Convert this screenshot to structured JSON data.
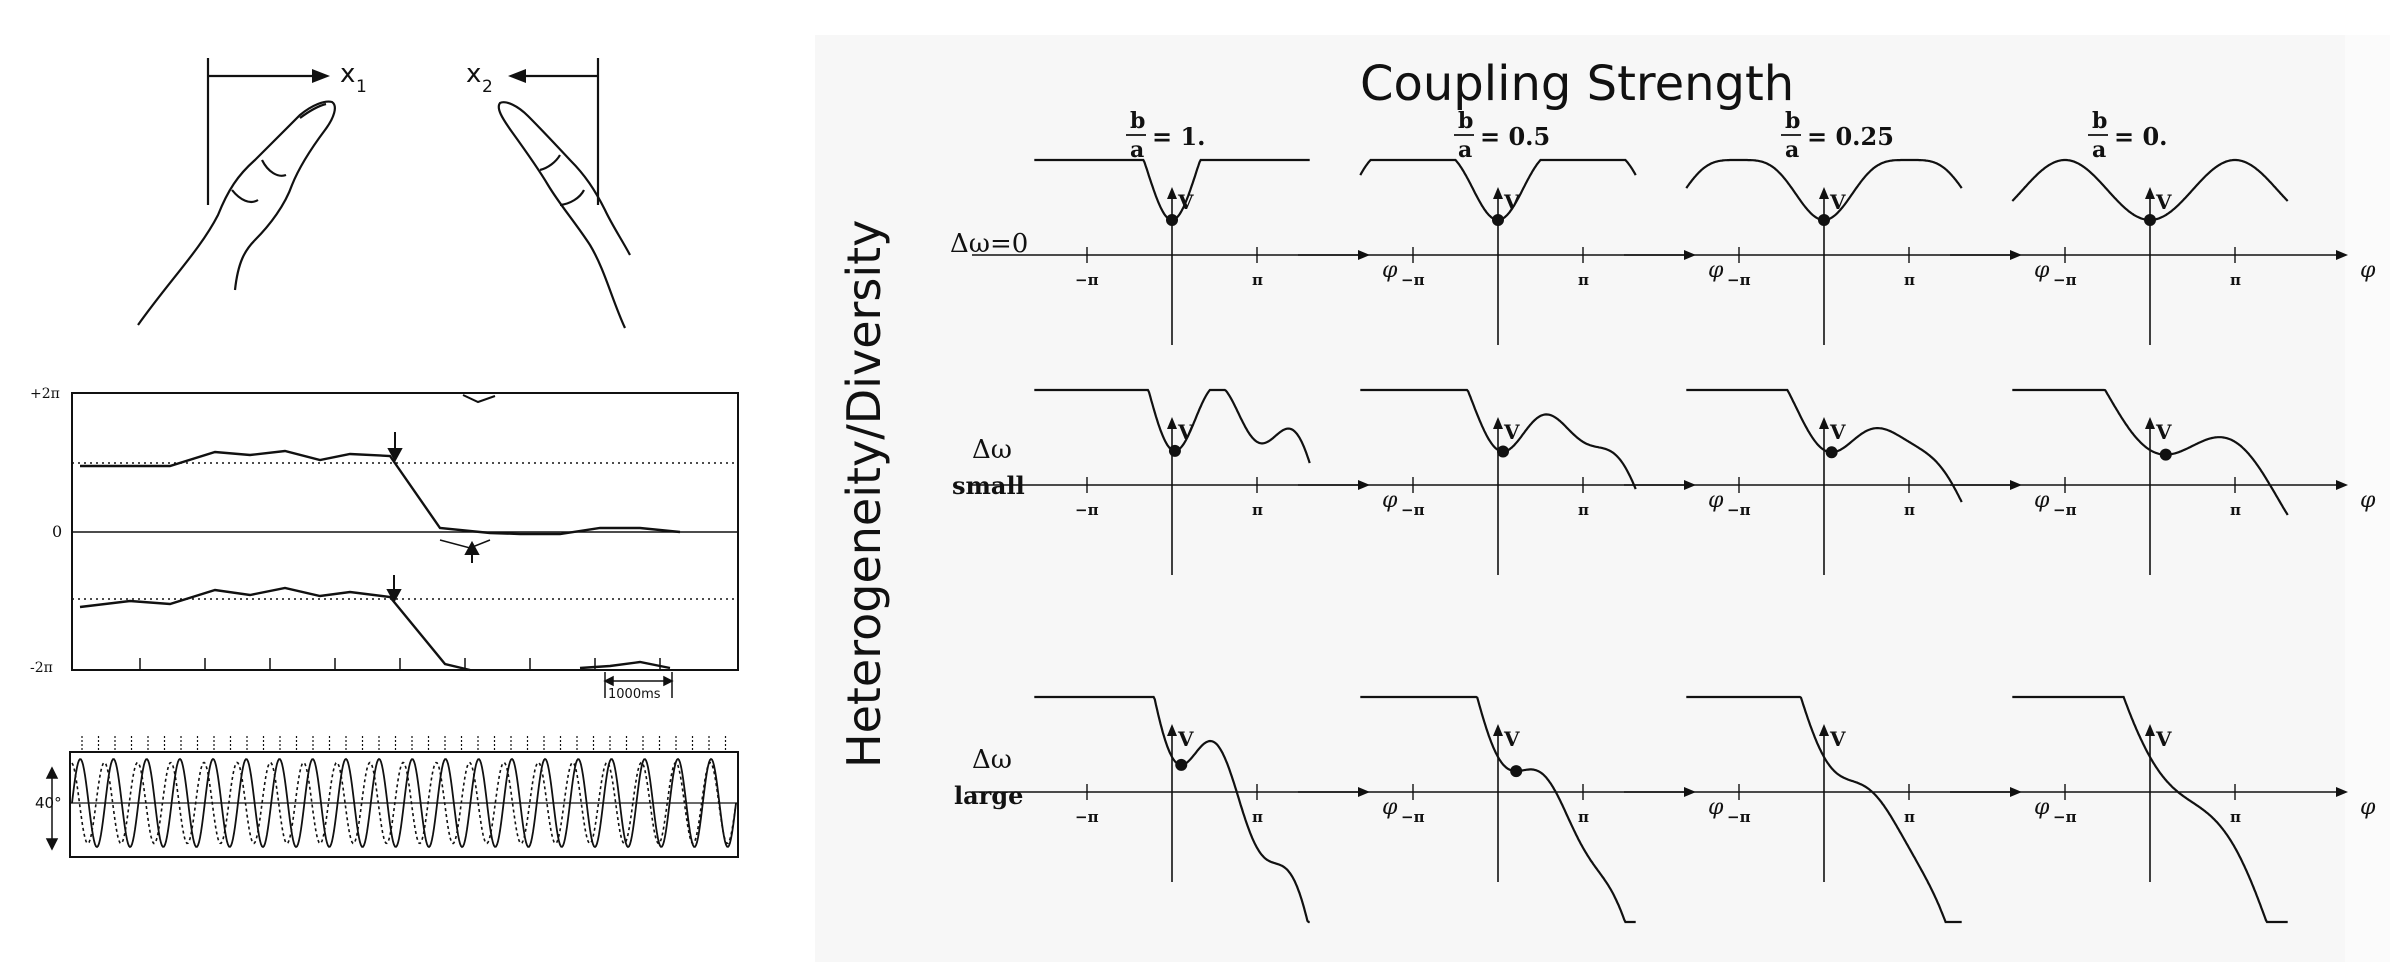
{
  "left": {
    "hands": {
      "x1_label": "x",
      "x1_sub": "1",
      "x2_label": "x",
      "x2_sub": "2"
    },
    "phase_plot": {
      "y_labels": [
        "+2π",
        "0",
        "-2π"
      ],
      "scale_bar": "1000ms"
    },
    "oscillation_plot": {
      "scale_label": "40°"
    }
  },
  "right": {
    "title": "Coupling Strength",
    "side_label": "Heterogeneity/Diversity",
    "column_ratios": [
      {
        "num": "b",
        "den": "a",
        "value": "= 1."
      },
      {
        "num": "b",
        "den": "a",
        "value": "= 0.5"
      },
      {
        "num": "b",
        "den": "a",
        "value": "= 0.25"
      },
      {
        "num": "b",
        "den": "a",
        "value": "= 0."
      }
    ],
    "rows": [
      {
        "line1": "Δω=0",
        "line2": ""
      },
      {
        "line1": "Δω",
        "line2": "small"
      },
      {
        "line1": "Δω",
        "line2": "large"
      }
    ],
    "axis": {
      "v_label": "V",
      "phi_label": "φ",
      "neg_pi": "−π",
      "pos_pi": "π"
    }
  }
}
